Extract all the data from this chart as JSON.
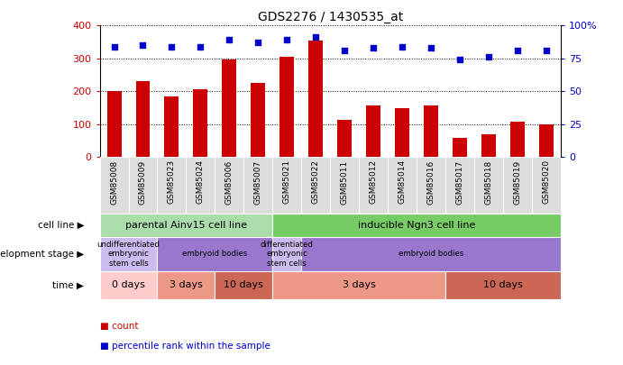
{
  "title": "GDS2276 / 1430535_at",
  "samples": [
    "GSM85008",
    "GSM85009",
    "GSM85023",
    "GSM85024",
    "GSM85006",
    "GSM85007",
    "GSM85021",
    "GSM85022",
    "GSM85011",
    "GSM85012",
    "GSM85014",
    "GSM85016",
    "GSM85017",
    "GSM85018",
    "GSM85019",
    "GSM85020"
  ],
  "counts": [
    200,
    230,
    185,
    205,
    297,
    225,
    305,
    355,
    113,
    158,
    148,
    158,
    58,
    68,
    107,
    100
  ],
  "percentiles": [
    84,
    85,
    84,
    84,
    89,
    87,
    89,
    91,
    81,
    83,
    84,
    83,
    74,
    76,
    81,
    81
  ],
  "bar_color": "#cc0000",
  "dot_color": "#0000cc",
  "ylim_left": [
    0,
    400
  ],
  "ylim_right": [
    0,
    100
  ],
  "yticks_left": [
    0,
    100,
    200,
    300,
    400
  ],
  "yticks_right": [
    0,
    25,
    50,
    75,
    100
  ],
  "yticklabels_right": [
    "0",
    "25",
    "50",
    "75",
    "100%"
  ],
  "cell_line_regions": [
    {
      "label": "parental Ainv15 cell line",
      "start": 0,
      "end": 6,
      "color": "#aaddaa"
    },
    {
      "label": "inducible Ngn3 cell line",
      "start": 6,
      "end": 16,
      "color": "#77cc66"
    }
  ],
  "dev_stage_regions": [
    {
      "label": "undifferentiated\nembryonic\nstem cells",
      "start": 0,
      "end": 2,
      "color": "#ccbbee"
    },
    {
      "label": "embryoid bodies",
      "start": 2,
      "end": 6,
      "color": "#9977cc"
    },
    {
      "label": "differentiated\nembryonic\nstem cells",
      "start": 6,
      "end": 7,
      "color": "#ccbbee"
    },
    {
      "label": "embryoid bodies",
      "start": 7,
      "end": 16,
      "color": "#9977cc"
    }
  ],
  "time_regions": [
    {
      "label": "0 days",
      "start": 0,
      "end": 2,
      "color": "#ffcccc"
    },
    {
      "label": "3 days",
      "start": 2,
      "end": 4,
      "color": "#ee9988"
    },
    {
      "label": "10 days",
      "start": 4,
      "end": 6,
      "color": "#cc6655"
    },
    {
      "label": "3 days",
      "start": 6,
      "end": 12,
      "color": "#ee9988"
    },
    {
      "label": "10 days",
      "start": 12,
      "end": 16,
      "color": "#cc6655"
    }
  ],
  "legend_items": [
    {
      "color": "#cc0000",
      "label": "count"
    },
    {
      "color": "#0000cc",
      "label": "percentile rank within the sample"
    }
  ],
  "row_labels": [
    "cell line",
    "development stage",
    "time"
  ],
  "xtick_bg": "#dddddd",
  "grid_color": "#000000"
}
